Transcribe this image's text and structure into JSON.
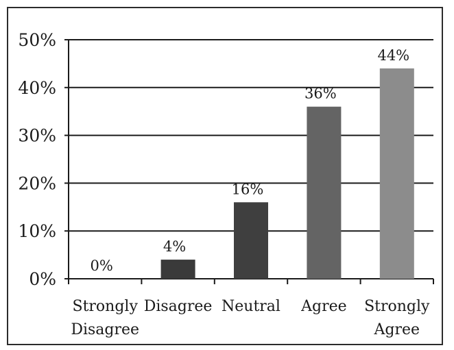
{
  "chart_data": {
    "type": "bar",
    "title": "",
    "xlabel": "",
    "ylabel": "",
    "categories": [
      [
        "Strongly",
        "Disagree"
      ],
      [
        "Disagree"
      ],
      [
        "Neutral"
      ],
      [
        "Agree"
      ],
      [
        "Strongly",
        "Agree"
      ]
    ],
    "values": [
      0,
      4,
      16,
      36,
      44
    ],
    "value_labels": [
      "0%",
      "4%",
      "16%",
      "36%",
      "44%"
    ],
    "ylim": [
      0,
      50
    ],
    "yticks": [
      0,
      10,
      20,
      30,
      40,
      50
    ],
    "ytick_labels": [
      "0%",
      "10%",
      "20%",
      "30%",
      "40%",
      "50%"
    ],
    "grid": true,
    "legend": "none",
    "bar_colors": [
      "#3a3a3a",
      "#3a3a3a",
      "#3f3f3f",
      "#646464",
      "#8c8c8c"
    ]
  }
}
